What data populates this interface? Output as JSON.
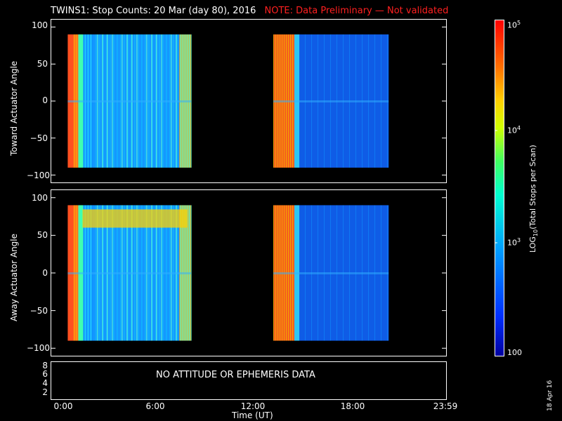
{
  "header": {
    "title": "TWINS1: Stop Counts: 20 Mar (day  80), 2016",
    "note": "NOTE: Data Preliminary — Not validated",
    "note_color": "#ff2020"
  },
  "panels": {
    "top": {
      "ylabel": "Toward Actuator Angle"
    },
    "middle": {
      "ylabel": "Away Actuator Angle"
    },
    "bottom": {
      "message": "NO ATTITUDE OR EPHEMERIS DATA",
      "yticks": [
        "8",
        "6",
        "4",
        "2"
      ]
    }
  },
  "x_axis": {
    "label": "Time (UT)",
    "ticks": [
      "0:00",
      "6:00",
      "12:00",
      "18:00",
      "23:59"
    ]
  },
  "colorbar": {
    "label": "LOG10(Total Stops per Scan)",
    "tick_labels": [
      "10^5",
      "10^4",
      "10^3",
      "100"
    ]
  },
  "footer": {
    "date": "18 Apr 16"
  },
  "chart_data": [
    {
      "type": "heatmap",
      "ylabel": "Toward Actuator Angle",
      "xlabel": "",
      "xlim_hours": [
        0,
        24
      ],
      "ylim": [
        -110,
        110
      ],
      "yticks": [
        100,
        50,
        0,
        -50,
        -100
      ],
      "data_segments_hours": [
        [
          1.0,
          8.5
        ],
        [
          13.5,
          20.5
        ]
      ],
      "y_range": [
        -90,
        90
      ],
      "color_scale": "log10",
      "color_range": [
        100,
        100000
      ]
    },
    {
      "type": "heatmap",
      "ylabel": "Away Actuator Angle",
      "xlabel": "",
      "xlim_hours": [
        0,
        24
      ],
      "ylim": [
        -110,
        110
      ],
      "yticks": [
        100,
        50,
        0,
        -50,
        -100
      ],
      "data_segments_hours": [
        [
          1.0,
          8.5
        ],
        [
          13.5,
          20.5
        ]
      ],
      "y_range": [
        -90,
        90
      ],
      "color_scale": "log10",
      "color_range": [
        100,
        100000
      ]
    }
  ]
}
